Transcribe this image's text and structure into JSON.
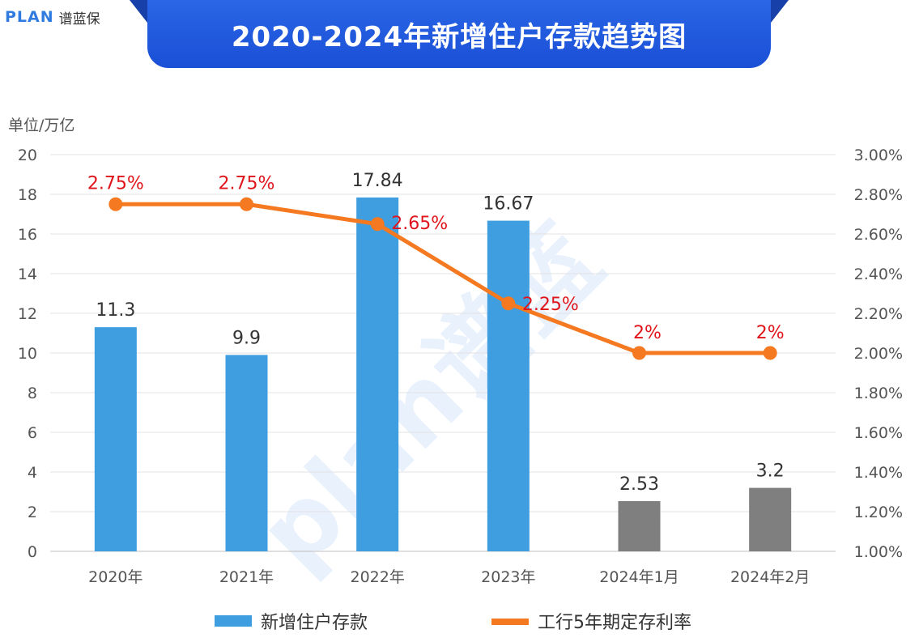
{
  "brand": {
    "logo_mark": "PLAN",
    "logo_text": "谱蓝保"
  },
  "banner": {
    "title": "2020-2024年新增住户存款趋势图"
  },
  "watermark": {
    "text": "plan谱蓝"
  },
  "colors": {
    "bar_annual": "#3f9ee0",
    "bar_monthly": "#7f7f7f",
    "line": "#f47920",
    "rate_label": "#e0151b",
    "banner": "#1a4fd6"
  },
  "chart_data": {
    "type": "bar",
    "unit_label": "单位/万亿",
    "categories": [
      "2020年",
      "2021年",
      "2022年",
      "2023年",
      "2024年1月",
      "2024年2月"
    ],
    "left_axis": {
      "min": 0,
      "max": 20,
      "ticks": [
        "0",
        "2",
        "4",
        "6",
        "8",
        "10",
        "12",
        "14",
        "16",
        "18",
        "20"
      ]
    },
    "right_axis": {
      "min": 1.0,
      "max": 3.0,
      "ticks": [
        "1.00%",
        "1.20%",
        "1.40%",
        "1.60%",
        "1.80%",
        "2.00%",
        "2.20%",
        "2.40%",
        "2.60%",
        "2.80%",
        "3.00%"
      ]
    },
    "grid": true,
    "legend_position": "bottom",
    "series": [
      {
        "name": "新增住户存款",
        "kind": "bar",
        "axis": "left",
        "values": [
          11.3,
          9.9,
          17.84,
          16.67,
          2.53,
          3.2
        ],
        "labels": [
          "11.3",
          "9.9",
          "17.84",
          "16.67",
          "2.53",
          "3.2"
        ]
      },
      {
        "name": "工行5年期定存利率",
        "kind": "line",
        "axis": "right",
        "values": [
          2.75,
          2.75,
          2.65,
          2.25,
          2.0,
          2.0
        ],
        "labels": [
          "2.75%",
          "2.75%",
          "2.65%",
          "2.25%",
          "2%",
          "2%"
        ]
      }
    ]
  }
}
